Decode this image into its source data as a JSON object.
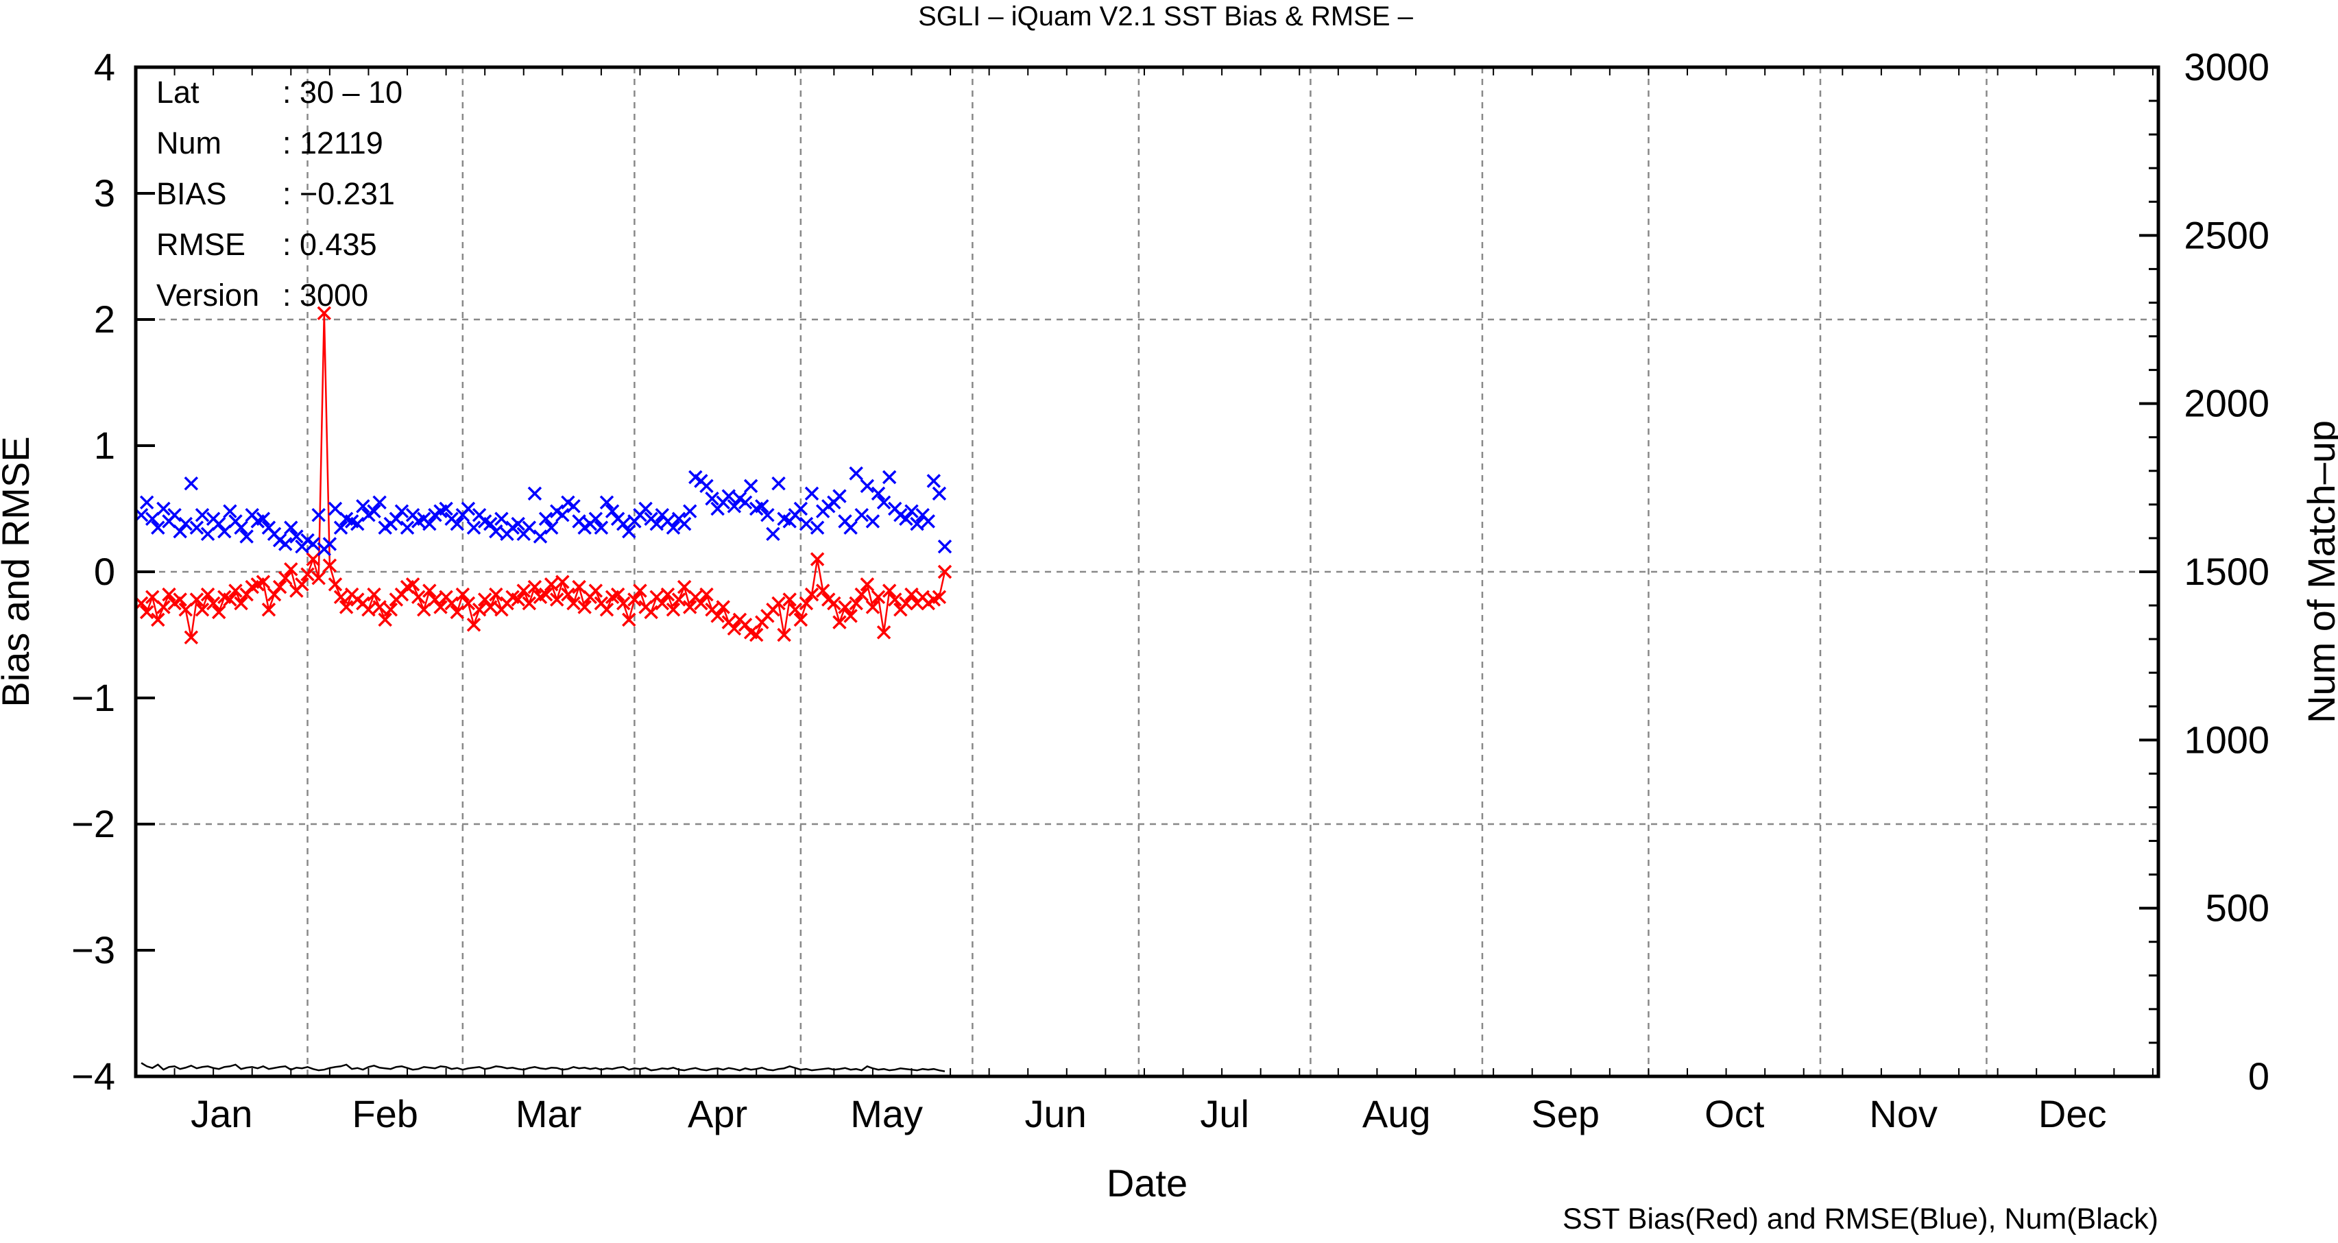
{
  "chart_data": {
    "type": "line",
    "title": "SGLI – iQuam V2.1 SST Bias & RMSE  –",
    "xlabel": "Date",
    "ylabel": "Bias and RMSE",
    "y2label": "Num of Match–up",
    "footnote": "SST Bias(Red) and RMSE(Blue), Num(Black)",
    "xlim": [
      0,
      365
    ],
    "ylim": [
      -4,
      4
    ],
    "y2lim": [
      0,
      3000
    ],
    "yticks": [
      "4",
      "3",
      "2",
      "1",
      "0",
      "−1",
      "−2",
      "−3",
      "−4"
    ],
    "y2ticks": [
      "3000",
      "2500",
      "2000",
      "1500",
      "1000",
      "500",
      "0"
    ],
    "months": [
      "Jan",
      "Feb",
      "Mar",
      "Apr",
      "May",
      "Jun",
      "Jul",
      "Aug",
      "Sep",
      "Oct",
      "Nov",
      "Dec"
    ],
    "grid": true,
    "info": [
      {
        "key": "Lat",
        "value": ": 30 – 10"
      },
      {
        "key": "Num",
        "value": ": 12119"
      },
      {
        "key": "BIAS",
        "value": ": −0.231"
      },
      {
        "key": "RMSE",
        "value": ": 0.435"
      },
      {
        "key": "Version",
        "value": ": 3000"
      }
    ],
    "colors": {
      "bias": "#ff0000",
      "rmse": "#0000ff",
      "num": "#000000",
      "grid": "#888888"
    },
    "x_day_of_year": [
      1,
      2,
      3,
      4,
      5,
      6,
      7,
      8,
      9,
      10,
      11,
      12,
      13,
      14,
      15,
      16,
      17,
      18,
      19,
      20,
      21,
      22,
      23,
      24,
      25,
      26,
      27,
      28,
      29,
      30,
      31,
      32,
      33,
      34,
      35,
      36,
      37,
      38,
      39,
      40,
      41,
      42,
      43,
      44,
      45,
      46,
      47,
      48,
      49,
      50,
      51,
      52,
      53,
      54,
      55,
      56,
      57,
      58,
      59,
      60,
      61,
      62,
      63,
      64,
      65,
      66,
      67,
      68,
      69,
      70,
      71,
      72,
      73,
      74,
      75,
      76,
      77,
      78,
      79,
      80,
      81,
      82,
      83,
      84,
      85,
      86,
      87,
      88,
      89,
      90,
      91,
      92,
      93,
      94,
      95,
      96,
      97,
      98,
      99,
      100,
      101,
      102,
      103,
      104,
      105,
      106,
      107,
      108,
      109,
      110,
      111,
      112,
      113,
      114,
      115,
      116,
      117,
      118,
      119,
      120,
      121,
      122,
      123,
      124,
      125,
      126,
      127,
      128,
      129,
      130,
      131,
      132,
      133,
      134,
      135,
      136,
      137,
      138,
      139,
      140,
      141,
      142,
      143,
      144,
      145,
      146
    ],
    "series": [
      {
        "name": "SST Bias",
        "color": "#ff0000",
        "values": [
          -0.25,
          -0.32,
          -0.2,
          -0.38,
          -0.28,
          -0.18,
          -0.25,
          -0.22,
          -0.3,
          -0.52,
          -0.22,
          -0.3,
          -0.18,
          -0.25,
          -0.32,
          -0.2,
          -0.22,
          -0.15,
          -0.25,
          -0.18,
          -0.12,
          -0.1,
          -0.08,
          -0.3,
          -0.18,
          -0.12,
          -0.05,
          0.02,
          -0.15,
          -0.1,
          -0.02,
          0.1,
          -0.05,
          2.05,
          0.05,
          -0.1,
          -0.2,
          -0.28,
          -0.18,
          -0.22,
          -0.25,
          -0.3,
          -0.18,
          -0.28,
          -0.38,
          -0.3,
          -0.22,
          -0.18,
          -0.12,
          -0.1,
          -0.2,
          -0.3,
          -0.15,
          -0.22,
          -0.28,
          -0.2,
          -0.25,
          -0.32,
          -0.18,
          -0.25,
          -0.42,
          -0.3,
          -0.22,
          -0.28,
          -0.18,
          -0.3,
          -0.25,
          -0.2,
          -0.22,
          -0.15,
          -0.25,
          -0.12,
          -0.2,
          -0.18,
          -0.1,
          -0.22,
          -0.08,
          -0.18,
          -0.25,
          -0.12,
          -0.28,
          -0.2,
          -0.15,
          -0.25,
          -0.3,
          -0.2,
          -0.18,
          -0.25,
          -0.38,
          -0.22,
          -0.15,
          -0.28,
          -0.32,
          -0.2,
          -0.25,
          -0.18,
          -0.3,
          -0.22,
          -0.12,
          -0.28,
          -0.2,
          -0.25,
          -0.18,
          -0.3,
          -0.35,
          -0.28,
          -0.4,
          -0.45,
          -0.38,
          -0.42,
          -0.48,
          -0.5,
          -0.4,
          -0.35,
          -0.3,
          -0.25,
          -0.5,
          -0.22,
          -0.3,
          -0.38,
          -0.25,
          -0.18,
          0.1,
          -0.15,
          -0.22,
          -0.25,
          -0.4,
          -0.28,
          -0.35,
          -0.25,
          -0.18,
          -0.1,
          -0.28,
          -0.2,
          -0.48,
          -0.15,
          -0.22,
          -0.3,
          -0.25,
          -0.18,
          -0.25,
          -0.2,
          -0.25,
          -0.22,
          -0.2,
          0.0
        ]
      },
      {
        "name": "SST RMSE",
        "color": "#0000ff",
        "values": [
          0.45,
          0.55,
          0.42,
          0.35,
          0.5,
          0.4,
          0.45,
          0.32,
          0.38,
          0.7,
          0.35,
          0.45,
          0.3,
          0.42,
          0.38,
          0.32,
          0.48,
          0.4,
          0.35,
          0.28,
          0.45,
          0.4,
          0.42,
          0.35,
          0.3,
          0.25,
          0.22,
          0.35,
          0.28,
          0.2,
          0.25,
          0.22,
          0.45,
          0.18,
          0.22,
          0.5,
          0.35,
          0.42,
          0.4,
          0.38,
          0.52,
          0.45,
          0.48,
          0.55,
          0.35,
          0.38,
          0.42,
          0.48,
          0.35,
          0.45,
          0.4,
          0.42,
          0.38,
          0.45,
          0.48,
          0.5,
          0.42,
          0.38,
          0.45,
          0.5,
          0.35,
          0.45,
          0.4,
          0.38,
          0.32,
          0.42,
          0.3,
          0.35,
          0.38,
          0.3,
          0.35,
          0.62,
          0.28,
          0.42,
          0.35,
          0.48,
          0.45,
          0.55,
          0.52,
          0.4,
          0.35,
          0.38,
          0.42,
          0.35,
          0.55,
          0.48,
          0.42,
          0.38,
          0.32,
          0.4,
          0.45,
          0.5,
          0.42,
          0.38,
          0.45,
          0.4,
          0.35,
          0.42,
          0.38,
          0.48,
          0.75,
          0.72,
          0.68,
          0.58,
          0.5,
          0.55,
          0.6,
          0.52,
          0.58,
          0.55,
          0.68,
          0.5,
          0.52,
          0.45,
          0.3,
          0.7,
          0.42,
          0.4,
          0.45,
          0.5,
          0.38,
          0.62,
          0.35,
          0.48,
          0.52,
          0.55,
          0.6,
          0.4,
          0.35,
          0.78,
          0.45,
          0.68,
          0.4,
          0.62,
          0.55,
          0.75,
          0.5,
          0.45,
          0.42,
          0.48,
          0.38,
          0.45,
          0.4,
          0.72,
          0.62,
          0.2
        ]
      },
      {
        "name": "Num",
        "color": "#000000",
        "values": [
          40,
          30,
          25,
          35,
          20,
          28,
          30,
          22,
          26,
          32,
          24,
          28,
          30,
          25,
          22,
          28,
          30,
          35,
          22,
          26,
          28,
          24,
          30,
          22,
          25,
          28,
          30,
          20,
          26,
          24,
          28,
          22,
          18,
          20,
          25,
          28,
          30,
          35,
          22,
          25,
          20,
          28,
          32,
          26,
          24,
          22,
          28,
          30,
          25,
          20,
          22,
          28,
          26,
          24,
          30,
          28,
          22,
          25,
          20,
          24,
          26,
          28,
          22,
          25,
          30,
          28,
          24,
          26,
          22,
          20,
          25,
          28,
          24,
          22,
          26,
          25,
          20,
          22,
          28,
          24,
          26,
          22,
          25,
          20,
          24,
          22,
          26,
          28,
          20,
          24,
          22,
          25,
          18,
          20,
          24,
          22,
          26,
          20,
          18,
          22,
          25,
          20,
          18,
          22,
          24,
          20,
          25,
          22,
          18,
          24,
          20,
          22,
          26,
          20,
          18,
          22,
          24,
          30,
          25,
          20,
          22,
          18,
          20,
          22,
          24,
          20,
          22,
          25,
          20,
          22,
          18,
          30,
          24,
          20,
          22,
          18,
          20,
          24,
          22,
          20,
          18,
          22,
          20,
          22,
          18,
          15
        ]
      }
    ]
  }
}
